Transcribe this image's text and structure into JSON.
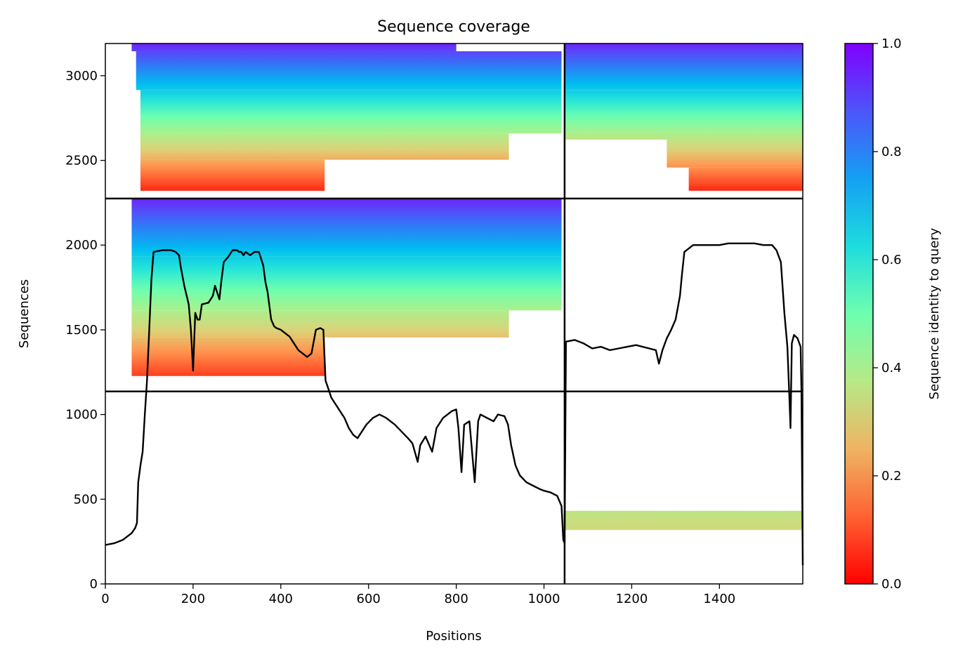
{
  "chart_data": {
    "type": "heatmap",
    "title": "Sequence coverage",
    "xlabel": "Positions",
    "ylabel": "Sequences",
    "colorbar_label": "Sequence identity to query",
    "colormap": "rainbow_r",
    "xlim": [
      0,
      1590
    ],
    "ylim": [
      0,
      3190
    ],
    "x_ticks": [
      0,
      200,
      400,
      600,
      800,
      1000,
      1200,
      1400
    ],
    "y_ticks": [
      0,
      500,
      1000,
      1500,
      2000,
      2500,
      3000
    ],
    "colorbar_range": [
      0,
      1
    ],
    "colorbar_ticks": [
      "0.0",
      "0.2",
      "0.4",
      "0.6",
      "0.8",
      "1.0"
    ],
    "colorbar_tick_values": [
      0,
      0.2,
      0.4,
      0.6,
      0.8,
      1.0
    ],
    "divider_x": [
      1047
    ],
    "divider_y": [
      1136,
      2275
    ],
    "blocks": [
      {
        "x0": 0,
        "x1": 1047,
        "y0": 2275,
        "y1": 3190,
        "segments": [
          [
            60,
            800,
            0.95,
            1.0
          ],
          [
            70,
            1040,
            0.7,
            0.95
          ],
          [
            80,
            1040,
            0.42,
            0.7
          ],
          [
            80,
            920,
            0.25,
            0.42
          ],
          [
            80,
            500,
            0.05,
            0.25
          ]
        ]
      },
      {
        "x0": 1047,
        "x1": 1590,
        "y0": 2275,
        "y1": 3190,
        "segments": [
          [
            1047,
            1590,
            0.7,
            1.0
          ],
          [
            1047,
            1590,
            0.38,
            0.7
          ],
          [
            1280,
            1590,
            0.2,
            0.38
          ],
          [
            1330,
            1590,
            0.05,
            0.2
          ]
        ]
      },
      {
        "x0": 0,
        "x1": 1047,
        "y0": 1136,
        "y1": 2275,
        "segments": [
          [
            60,
            1040,
            0.7,
            1.0
          ],
          [
            60,
            1040,
            0.42,
            0.7
          ],
          [
            60,
            920,
            0.28,
            0.42
          ],
          [
            60,
            500,
            0.08,
            0.28
          ]
        ]
      },
      {
        "x0": 1047,
        "x1": 1590,
        "y0": 0,
        "y1": 1136,
        "segments": [
          [
            1047,
            1590,
            0.28,
            0.38
          ]
        ]
      }
    ],
    "coverage_line": [
      [
        0,
        230
      ],
      [
        20,
        240
      ],
      [
        40,
        260
      ],
      [
        60,
        300
      ],
      [
        68,
        330
      ],
      [
        72,
        360
      ],
      [
        75,
        600
      ],
      [
        80,
        700
      ],
      [
        85,
        780
      ],
      [
        90,
        1000
      ],
      [
        95,
        1200
      ],
      [
        100,
        1500
      ],
      [
        105,
        1800
      ],
      [
        110,
        1960
      ],
      [
        130,
        1970
      ],
      [
        150,
        1970
      ],
      [
        160,
        1960
      ],
      [
        168,
        1940
      ],
      [
        172,
        1870
      ],
      [
        180,
        1760
      ],
      [
        190,
        1650
      ],
      [
        195,
        1500
      ],
      [
        200,
        1260
      ],
      [
        205,
        1600
      ],
      [
        210,
        1560
      ],
      [
        215,
        1560
      ],
      [
        220,
        1650
      ],
      [
        235,
        1660
      ],
      [
        245,
        1700
      ],
      [
        250,
        1760
      ],
      [
        260,
        1680
      ],
      [
        265,
        1800
      ],
      [
        270,
        1900
      ],
      [
        280,
        1930
      ],
      [
        290,
        1970
      ],
      [
        300,
        1970
      ],
      [
        305,
        1960
      ],
      [
        310,
        1960
      ],
      [
        315,
        1940
      ],
      [
        320,
        1960
      ],
      [
        330,
        1940
      ],
      [
        340,
        1960
      ],
      [
        350,
        1960
      ],
      [
        360,
        1880
      ],
      [
        365,
        1780
      ],
      [
        370,
        1720
      ],
      [
        378,
        1560
      ],
      [
        385,
        1520
      ],
      [
        390,
        1510
      ],
      [
        400,
        1500
      ],
      [
        410,
        1480
      ],
      [
        420,
        1460
      ],
      [
        430,
        1420
      ],
      [
        440,
        1380
      ],
      [
        450,
        1360
      ],
      [
        460,
        1340
      ],
      [
        470,
        1360
      ],
      [
        480,
        1500
      ],
      [
        490,
        1510
      ],
      [
        497,
        1500
      ],
      [
        502,
        1200
      ],
      [
        510,
        1140
      ],
      [
        515,
        1100
      ],
      [
        525,
        1060
      ],
      [
        535,
        1020
      ],
      [
        545,
        980
      ],
      [
        555,
        920
      ],
      [
        565,
        880
      ],
      [
        575,
        860
      ],
      [
        585,
        900
      ],
      [
        595,
        940
      ],
      [
        610,
        980
      ],
      [
        625,
        1000
      ],
      [
        640,
        980
      ],
      [
        660,
        940
      ],
      [
        675,
        900
      ],
      [
        690,
        860
      ],
      [
        700,
        830
      ],
      [
        712,
        720
      ],
      [
        718,
        820
      ],
      [
        730,
        870
      ],
      [
        745,
        780
      ],
      [
        755,
        920
      ],
      [
        770,
        980
      ],
      [
        790,
        1020
      ],
      [
        800,
        1030
      ],
      [
        805,
        920
      ],
      [
        812,
        660
      ],
      [
        818,
        940
      ],
      [
        830,
        960
      ],
      [
        838,
        720
      ],
      [
        842,
        600
      ],
      [
        850,
        960
      ],
      [
        855,
        1000
      ],
      [
        870,
        980
      ],
      [
        885,
        960
      ],
      [
        895,
        1000
      ],
      [
        910,
        990
      ],
      [
        918,
        940
      ],
      [
        925,
        820
      ],
      [
        935,
        700
      ],
      [
        945,
        640
      ],
      [
        960,
        600
      ],
      [
        975,
        580
      ],
      [
        990,
        560
      ],
      [
        1000,
        550
      ],
      [
        1015,
        540
      ],
      [
        1030,
        520
      ],
      [
        1040,
        460
      ],
      [
        1044,
        260
      ],
      [
        1047,
        240
      ],
      [
        1050,
        1430
      ],
      [
        1070,
        1440
      ],
      [
        1090,
        1420
      ],
      [
        1110,
        1390
      ],
      [
        1130,
        1400
      ],
      [
        1150,
        1380
      ],
      [
        1170,
        1390
      ],
      [
        1190,
        1400
      ],
      [
        1210,
        1410
      ],
      [
        1225,
        1400
      ],
      [
        1240,
        1390
      ],
      [
        1255,
        1380
      ],
      [
        1262,
        1300
      ],
      [
        1270,
        1380
      ],
      [
        1280,
        1450
      ],
      [
        1290,
        1500
      ],
      [
        1300,
        1560
      ],
      [
        1310,
        1700
      ],
      [
        1315,
        1840
      ],
      [
        1320,
        1960
      ],
      [
        1340,
        2000
      ],
      [
        1360,
        2000
      ],
      [
        1380,
        2000
      ],
      [
        1400,
        2000
      ],
      [
        1420,
        2010
      ],
      [
        1440,
        2010
      ],
      [
        1460,
        2010
      ],
      [
        1480,
        2010
      ],
      [
        1500,
        2000
      ],
      [
        1520,
        2000
      ],
      [
        1530,
        1970
      ],
      [
        1540,
        1900
      ],
      [
        1548,
        1600
      ],
      [
        1555,
        1400
      ],
      [
        1560,
        1060
      ],
      [
        1562,
        920
      ],
      [
        1565,
        1420
      ],
      [
        1570,
        1470
      ],
      [
        1578,
        1450
      ],
      [
        1585,
        1400
      ],
      [
        1587,
        1140
      ],
      [
        1590,
        110
      ]
    ]
  }
}
